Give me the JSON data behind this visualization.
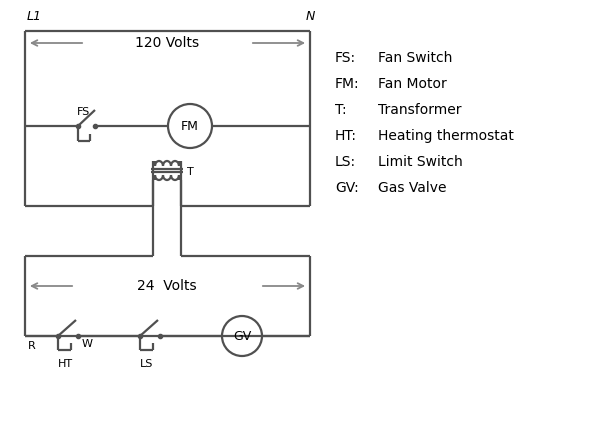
{
  "bg_color": "#ffffff",
  "line_color": "#505050",
  "arrow_color": "#888888",
  "text_color": "#000000",
  "legend_items": [
    [
      "FS:",
      "Fan Switch"
    ],
    [
      "FM:",
      "Fan Motor"
    ],
    [
      "T:",
      "Transformer"
    ],
    [
      "HT:",
      "Heating thermostat"
    ],
    [
      "LS:",
      "Limit Switch"
    ],
    [
      "GV:",
      "Gas Valve"
    ]
  ],
  "L1_label": "L1",
  "N_label": "N",
  "volts120_label": "120 Volts",
  "volts24_label": "24  Volts",
  "FS_label": "FS",
  "FM_label": "FM",
  "T_label": "T",
  "R_label": "R",
  "W_label": "W",
  "HT_label": "HT",
  "LS_label": "LS",
  "GV_label": "GV"
}
